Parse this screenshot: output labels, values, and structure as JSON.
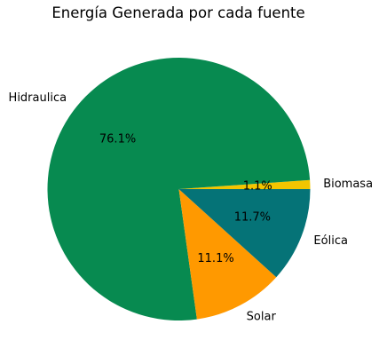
{
  "chart_data": {
    "type": "pie",
    "title": "Energía Generada por cada fuente",
    "slices": [
      {
        "label": "Biomasa",
        "value": 1.1,
        "pct_text": "1.1%",
        "color": "#f2c500"
      },
      {
        "label": "Hidraulica",
        "value": 76.1,
        "pct_text": "76.1%",
        "color": "#078a50"
      },
      {
        "label": "Solar",
        "value": 11.1,
        "pct_text": "11.1%",
        "color": "#ff9900"
      },
      {
        "label": "Eólica",
        "value": 11.7,
        "pct_text": "11.7%",
        "color": "#057377"
      }
    ],
    "start_angle_deg": 0,
    "direction": "counterclockwise"
  }
}
